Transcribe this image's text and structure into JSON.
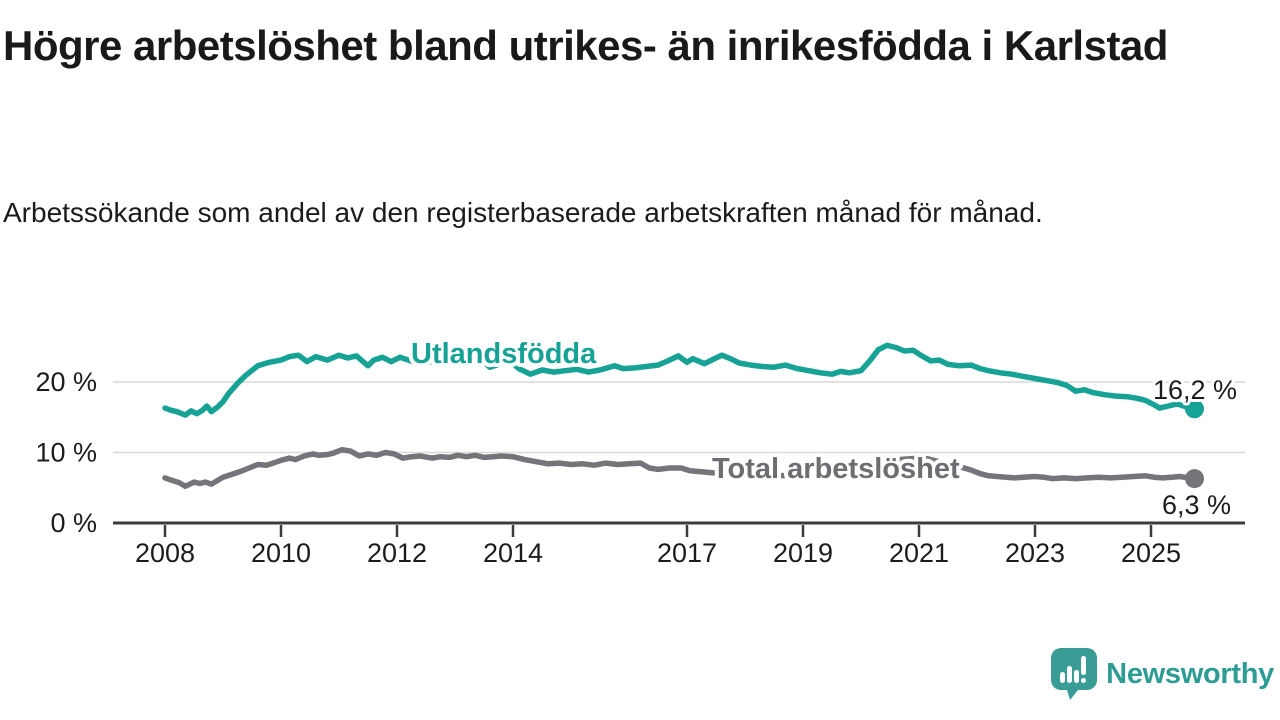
{
  "header": {
    "title": "Högre arbetslöshet bland utrikes- än inrikesfödda i Karlstad",
    "subtitle": "Arbetssökande som andel av den registerbaserade arbetskraften månad för månad."
  },
  "chart_data": {
    "type": "line",
    "title": "Högre arbetslöshet bland utrikes- än inrikesfödda i Karlstad",
    "subtitle": "Arbetssökande som andel av den registerbaserade arbetskraften månad för månad.",
    "xlabel": "",
    "ylabel": "",
    "xlim": [
      2007.9,
      2026.6
    ],
    "ylim": [
      0,
      26
    ],
    "grid": "horizontal",
    "legend_position": "inline-labels",
    "x_axis": {
      "ticks": [
        2008,
        2010,
        2012,
        2014,
        2017,
        2019,
        2021,
        2023,
        2025
      ],
      "labels": [
        "2008",
        "2010",
        "2012",
        "2014",
        "2017",
        "2019",
        "2021",
        "2023",
        "2025"
      ]
    },
    "y_axis": {
      "ticks": [
        0,
        10,
        20
      ],
      "labels": [
        "0 %",
        "10 %",
        "20 %"
      ]
    },
    "series": [
      {
        "name": "Utlandsfödda",
        "color": "#17a296",
        "end_label": "16,2 %",
        "end_value": 16.2,
        "points": [
          [
            2008.0,
            16.3
          ],
          [
            2008.1,
            16.0
          ],
          [
            2008.2,
            15.8
          ],
          [
            2008.35,
            15.3
          ],
          [
            2008.45,
            15.9
          ],
          [
            2008.55,
            15.5
          ],
          [
            2008.65,
            16.0
          ],
          [
            2008.72,
            16.6
          ],
          [
            2008.8,
            15.8
          ],
          [
            2008.9,
            16.4
          ],
          [
            2009.0,
            17.2
          ],
          [
            2009.1,
            18.4
          ],
          [
            2009.25,
            19.8
          ],
          [
            2009.4,
            21.0
          ],
          [
            2009.6,
            22.3
          ],
          [
            2009.8,
            22.8
          ],
          [
            2010.0,
            23.1
          ],
          [
            2010.15,
            23.6
          ],
          [
            2010.3,
            23.8
          ],
          [
            2010.45,
            22.9
          ],
          [
            2010.6,
            23.6
          ],
          [
            2010.8,
            23.1
          ],
          [
            2011.0,
            23.8
          ],
          [
            2011.15,
            23.4
          ],
          [
            2011.3,
            23.7
          ],
          [
            2011.5,
            22.3
          ],
          [
            2011.6,
            23.1
          ],
          [
            2011.75,
            23.5
          ],
          [
            2011.9,
            22.9
          ],
          [
            2012.05,
            23.5
          ],
          [
            2012.2,
            23.1
          ],
          [
            2012.4,
            22.5
          ],
          [
            2012.6,
            22.9
          ],
          [
            2012.75,
            23.4
          ],
          [
            2012.9,
            22.9
          ],
          [
            2013.1,
            23.4
          ],
          [
            2013.25,
            23.1
          ],
          [
            2013.4,
            23.6
          ],
          [
            2013.6,
            22.1
          ],
          [
            2013.75,
            22.5
          ],
          [
            2013.95,
            23.0
          ],
          [
            2014.1,
            21.9
          ],
          [
            2014.3,
            21.1
          ],
          [
            2014.5,
            21.7
          ],
          [
            2014.7,
            21.4
          ],
          [
            2014.9,
            21.6
          ],
          [
            2015.1,
            21.8
          ],
          [
            2015.3,
            21.4
          ],
          [
            2015.5,
            21.7
          ],
          [
            2015.75,
            22.3
          ],
          [
            2015.9,
            21.9
          ],
          [
            2016.1,
            22.0
          ],
          [
            2016.3,
            22.2
          ],
          [
            2016.5,
            22.4
          ],
          [
            2016.7,
            23.1
          ],
          [
            2016.85,
            23.7
          ],
          [
            2017.0,
            22.8
          ],
          [
            2017.1,
            23.3
          ],
          [
            2017.3,
            22.6
          ],
          [
            2017.45,
            23.2
          ],
          [
            2017.6,
            23.8
          ],
          [
            2017.75,
            23.3
          ],
          [
            2017.9,
            22.7
          ],
          [
            2018.1,
            22.4
          ],
          [
            2018.3,
            22.2
          ],
          [
            2018.5,
            22.1
          ],
          [
            2018.7,
            22.4
          ],
          [
            2018.9,
            21.9
          ],
          [
            2019.1,
            21.6
          ],
          [
            2019.3,
            21.3
          ],
          [
            2019.5,
            21.1
          ],
          [
            2019.65,
            21.5
          ],
          [
            2019.8,
            21.3
          ],
          [
            2020.0,
            21.6
          ],
          [
            2020.15,
            23.0
          ],
          [
            2020.3,
            24.6
          ],
          [
            2020.45,
            25.2
          ],
          [
            2020.6,
            24.9
          ],
          [
            2020.75,
            24.4
          ],
          [
            2020.9,
            24.5
          ],
          [
            2021.05,
            23.7
          ],
          [
            2021.2,
            23.0
          ],
          [
            2021.35,
            23.1
          ],
          [
            2021.5,
            22.5
          ],
          [
            2021.7,
            22.3
          ],
          [
            2021.9,
            22.4
          ],
          [
            2022.05,
            21.9
          ],
          [
            2022.2,
            21.6
          ],
          [
            2022.4,
            21.3
          ],
          [
            2022.6,
            21.1
          ],
          [
            2022.8,
            20.8
          ],
          [
            2023.0,
            20.5
          ],
          [
            2023.2,
            20.2
          ],
          [
            2023.4,
            19.9
          ],
          [
            2023.55,
            19.5
          ],
          [
            2023.7,
            18.7
          ],
          [
            2023.85,
            18.9
          ],
          [
            2024.0,
            18.5
          ],
          [
            2024.2,
            18.2
          ],
          [
            2024.4,
            18.0
          ],
          [
            2024.6,
            17.9
          ],
          [
            2024.75,
            17.7
          ],
          [
            2024.9,
            17.4
          ],
          [
            2025.05,
            16.8
          ],
          [
            2025.15,
            16.3
          ],
          [
            2025.3,
            16.6
          ],
          [
            2025.45,
            16.9
          ],
          [
            2025.6,
            16.5
          ],
          [
            2025.75,
            16.2
          ]
        ]
      },
      {
        "name": "Total arbetslöshet",
        "color": "#74747a",
        "end_label": "6,3 %",
        "end_value": 6.3,
        "points": [
          [
            2008.0,
            6.4
          ],
          [
            2008.1,
            6.1
          ],
          [
            2008.25,
            5.7
          ],
          [
            2008.35,
            5.2
          ],
          [
            2008.5,
            5.8
          ],
          [
            2008.6,
            5.6
          ],
          [
            2008.7,
            5.8
          ],
          [
            2008.8,
            5.5
          ],
          [
            2008.9,
            6.0
          ],
          [
            2009.0,
            6.5
          ],
          [
            2009.15,
            6.9
          ],
          [
            2009.3,
            7.3
          ],
          [
            2009.45,
            7.8
          ],
          [
            2009.6,
            8.3
          ],
          [
            2009.75,
            8.2
          ],
          [
            2009.9,
            8.6
          ],
          [
            2010.0,
            8.9
          ],
          [
            2010.15,
            9.2
          ],
          [
            2010.25,
            9.0
          ],
          [
            2010.4,
            9.5
          ],
          [
            2010.55,
            9.8
          ],
          [
            2010.65,
            9.6
          ],
          [
            2010.8,
            9.7
          ],
          [
            2010.9,
            9.9
          ],
          [
            2011.05,
            10.4
          ],
          [
            2011.2,
            10.2
          ],
          [
            2011.35,
            9.5
          ],
          [
            2011.5,
            9.8
          ],
          [
            2011.65,
            9.6
          ],
          [
            2011.8,
            10.0
          ],
          [
            2011.95,
            9.8
          ],
          [
            2012.1,
            9.2
          ],
          [
            2012.25,
            9.4
          ],
          [
            2012.4,
            9.5
          ],
          [
            2012.6,
            9.2
          ],
          [
            2012.75,
            9.4
          ],
          [
            2012.9,
            9.3
          ],
          [
            2013.05,
            9.6
          ],
          [
            2013.2,
            9.4
          ],
          [
            2013.35,
            9.6
          ],
          [
            2013.5,
            9.3
          ],
          [
            2013.65,
            9.4
          ],
          [
            2013.8,
            9.5
          ],
          [
            2014.0,
            9.4
          ],
          [
            2014.2,
            9.0
          ],
          [
            2014.4,
            8.7
          ],
          [
            2014.6,
            8.4
          ],
          [
            2014.8,
            8.5
          ],
          [
            2015.0,
            8.3
          ],
          [
            2015.2,
            8.4
          ],
          [
            2015.4,
            8.2
          ],
          [
            2015.6,
            8.5
          ],
          [
            2015.8,
            8.3
          ],
          [
            2016.0,
            8.4
          ],
          [
            2016.2,
            8.5
          ],
          [
            2016.35,
            7.8
          ],
          [
            2016.5,
            7.6
          ],
          [
            2016.7,
            7.8
          ],
          [
            2016.9,
            7.8
          ],
          [
            2017.05,
            7.4
          ],
          [
            2017.2,
            7.3
          ],
          [
            2017.45,
            7.1
          ],
          [
            2017.7,
            7.0
          ],
          [
            2017.9,
            7.1
          ],
          [
            2018.1,
            6.9
          ],
          [
            2018.35,
            6.8
          ],
          [
            2018.6,
            6.7
          ],
          [
            2018.85,
            6.8
          ],
          [
            2019.1,
            6.7
          ],
          [
            2019.35,
            6.8
          ],
          [
            2019.6,
            7.0
          ],
          [
            2019.85,
            7.2
          ],
          [
            2020.05,
            7.6
          ],
          [
            2020.25,
            8.3
          ],
          [
            2020.45,
            8.8
          ],
          [
            2020.65,
            9.0
          ],
          [
            2020.85,
            9.1
          ],
          [
            2021.0,
            9.2
          ],
          [
            2021.15,
            9.1
          ],
          [
            2021.3,
            8.8
          ],
          [
            2021.5,
            8.4
          ],
          [
            2021.7,
            8.0
          ],
          [
            2021.9,
            7.5
          ],
          [
            2022.05,
            7.0
          ],
          [
            2022.2,
            6.7
          ],
          [
            2022.35,
            6.6
          ],
          [
            2022.5,
            6.5
          ],
          [
            2022.65,
            6.4
          ],
          [
            2022.8,
            6.5
          ],
          [
            2023.0,
            6.6
          ],
          [
            2023.15,
            6.5
          ],
          [
            2023.3,
            6.3
          ],
          [
            2023.5,
            6.4
          ],
          [
            2023.7,
            6.3
          ],
          [
            2023.9,
            6.4
          ],
          [
            2024.1,
            6.5
          ],
          [
            2024.3,
            6.4
          ],
          [
            2024.5,
            6.5
          ],
          [
            2024.7,
            6.6
          ],
          [
            2024.9,
            6.7
          ],
          [
            2025.05,
            6.5
          ],
          [
            2025.2,
            6.4
          ],
          [
            2025.35,
            6.5
          ],
          [
            2025.5,
            6.6
          ],
          [
            2025.65,
            6.4
          ],
          [
            2025.75,
            6.3
          ]
        ]
      }
    ]
  },
  "logo": {
    "text": "Newsworthy",
    "color": "#2d9c94",
    "icon": "newsworthy-bar-chart-speech-bubble"
  },
  "colors": {
    "teal": "#17a296",
    "gray": "#74747a",
    "gridline": "#d9d9d9",
    "axis": "#3b3b3b",
    "text": "#191919"
  }
}
